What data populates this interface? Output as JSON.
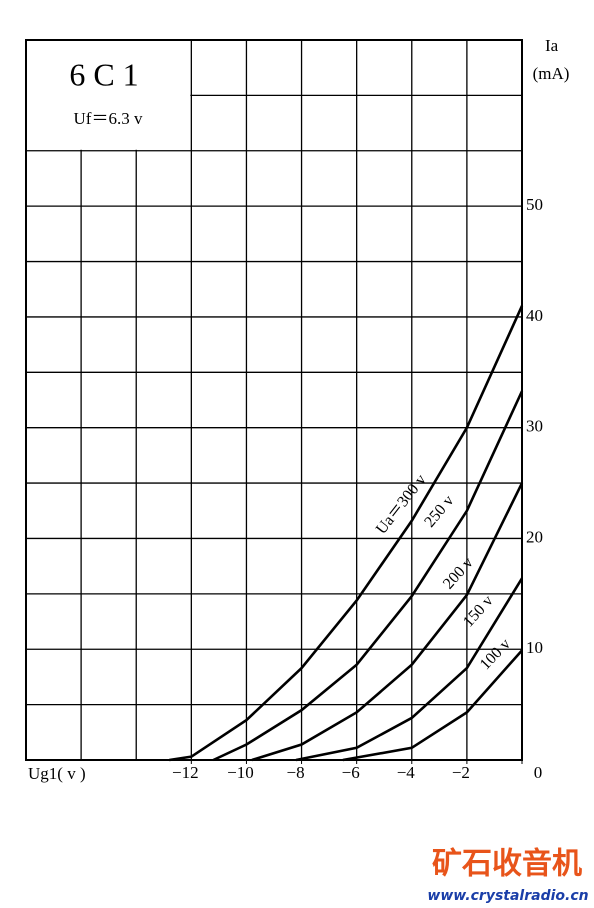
{
  "chart_data": {
    "type": "line",
    "title": "6C1",
    "annotation": "Uf＝6.3 v",
    "ylabel_symbol": "Ia",
    "ylabel_unit": "(mA)",
    "xlabel": "Ug1( v )",
    "xlim": [
      -18,
      0
    ],
    "ylim": [
      0,
      65
    ],
    "xticks": [
      {
        "value": -12,
        "label": "−12"
      },
      {
        "value": -10,
        "label": "−10"
      },
      {
        "value": -8,
        "label": "−8"
      },
      {
        "value": -6,
        "label": "−6"
      },
      {
        "value": -4,
        "label": "−4"
      },
      {
        "value": -2,
        "label": "−2"
      },
      0
    ],
    "yticks": [
      10,
      20,
      30,
      40,
      50
    ],
    "xgrid": [
      -18,
      -16,
      -14,
      -12,
      -10,
      -8,
      -6,
      -4,
      -2,
      0
    ],
    "ygrid": [
      0,
      5,
      10,
      15,
      20,
      25,
      30,
      35,
      40,
      45,
      50,
      55,
      60,
      65
    ],
    "grid": true,
    "series": [
      {
        "name": "Ua＝300 v",
        "color": "#000000",
        "x": [
          -12.8,
          -12,
          -10,
          -8,
          -6,
          -4,
          -2,
          0
        ],
        "values": [
          0,
          0.3,
          3.6,
          8.3,
          14.4,
          21.6,
          30,
          41
        ]
      },
      {
        "name": "250 v",
        "color": "#000000",
        "x": [
          -11.2,
          -10,
          -8,
          -6,
          -4,
          -2,
          0
        ],
        "values": [
          0,
          1.4,
          4.5,
          8.6,
          14.8,
          22.5,
          33.3
        ]
      },
      {
        "name": "200 v",
        "color": "#000000",
        "x": [
          -9.8,
          -8,
          -6,
          -4,
          -2,
          0
        ],
        "values": [
          0,
          1.4,
          4.3,
          8.6,
          14.9,
          25
        ]
      },
      {
        "name": "150 v",
        "color": "#000000",
        "x": [
          -8.2,
          -6,
          -4,
          -2,
          0
        ],
        "values": [
          0,
          1.1,
          3.8,
          8.3,
          16.4
        ]
      },
      {
        "name": "100 v",
        "color": "#000000",
        "x": [
          -6.5,
          -4,
          -2,
          0
        ],
        "values": [
          0,
          1.1,
          4.3,
          9.9
        ]
      }
    ]
  },
  "watermark": {
    "text": "矿石收音机",
    "url": "www.crystalradio.cn"
  }
}
